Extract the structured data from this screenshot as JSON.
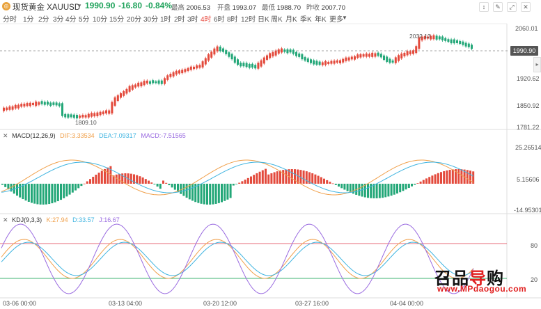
{
  "header": {
    "logo": "gold-coin-icon",
    "symbol": "现货黄金 XAUUSD",
    "price": "1990.90",
    "change": "-16.80",
    "change_pct": "-0.84%",
    "stats": [
      {
        "label": "最高",
        "value": "2006.53"
      },
      {
        "label": "开盘",
        "value": "1993.07"
      },
      {
        "label": "最低",
        "value": "1988.70"
      },
      {
        "label": "昨收",
        "value": "2007.70"
      }
    ],
    "tools": [
      "crosshair-icon",
      "draw-icon",
      "fullscreen-icon",
      "close-icon"
    ]
  },
  "periods": [
    "分时",
    "1分",
    "2分",
    "3分",
    "4分",
    "5分",
    "10分",
    "15分",
    "20分",
    "30分",
    "1时",
    "2时",
    "3时",
    "4时",
    "6时",
    "8时",
    "12时",
    "日K",
    "周K",
    "月K",
    "季K",
    "年K",
    "更多"
  ],
  "active_period": "4时",
  "colors": {
    "up": "#e34a3c",
    "down": "#23a778",
    "macd_dif": "#f0a04b",
    "macd_dea": "#3fb4e0",
    "macd_line": "#9a6be0",
    "kdj_k": "#f0a04b",
    "kdj_d": "#3fb4e0",
    "kdj_j": "#9a6be0",
    "level80": "#e76b7a",
    "level20": "#3cb371"
  },
  "price_axis": [
    "2060.01",
    "1990.90",
    "1920.62",
    "1850.92",
    "1781.22"
  ],
  "price_annotations": {
    "high": "2032.13",
    "low": "1809.10"
  },
  "current_price_tag": "1990.90",
  "macd": {
    "title": "MACD(12,26,9)",
    "dif": "DIF:3.33534",
    "dea": "DEA:7.09317",
    "macd": "MACD:-7.51565",
    "axis": [
      "25.26514",
      "5.15606",
      "-14.95301"
    ]
  },
  "kdj": {
    "title": "KDJ(9,3,3)",
    "k": "K:27.94",
    "d": "D:33.57",
    "j": "J:16.67",
    "axis": [
      "80",
      "20"
    ]
  },
  "time_axis": [
    "03-06 00:00",
    "03-13 04:00",
    "03-20 12:00",
    "03-27 16:00",
    "04-04 00:00"
  ],
  "watermark": {
    "cn_1": "召品",
    "cn_2": "导",
    "cn_3": "购",
    "url": "www.MPdaogou.com"
  }
}
